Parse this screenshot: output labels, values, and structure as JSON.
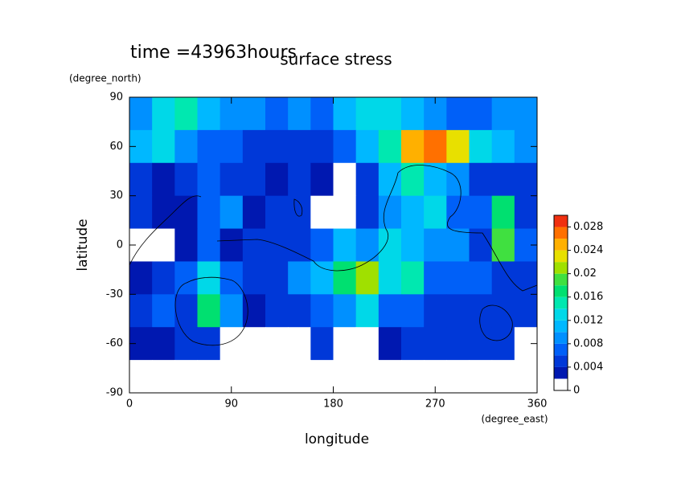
{
  "chart_data": {
    "type": "contour",
    "title": "surface stress",
    "subtitle": "time =43963hours",
    "x_label": "longitude",
    "x_units": "(degree_east)",
    "y_label": "latitude",
    "y_units": "(degree_north)",
    "xlim": [
      0,
      360
    ],
    "xticks": [
      0,
      90,
      180,
      270,
      360
    ],
    "ylim": [
      -90,
      90
    ],
    "yticks": [
      -90,
      -60,
      -30,
      0,
      30,
      60,
      90
    ],
    "x": [
      10,
      30,
      50,
      70,
      90,
      110,
      130,
      150,
      170,
      190,
      210,
      230,
      250,
      270,
      290,
      310,
      330,
      350
    ],
    "y": [
      80,
      60,
      40,
      20,
      0,
      -20,
      -40,
      -60,
      -80
    ],
    "z": [
      [
        0.008,
        0.012,
        0.014,
        0.01,
        0.008,
        0.008,
        0.006,
        0.008,
        0.006,
        0.01,
        0.012,
        0.012,
        0.01,
        0.008,
        0.006,
        0.006,
        0.008,
        0.008
      ],
      [
        0.01,
        0.012,
        0.008,
        0.006,
        0.006,
        0.004,
        0.004,
        0.004,
        0.004,
        0.006,
        0.01,
        0.014,
        0.024,
        0.026,
        0.022,
        0.012,
        0.01,
        0.008
      ],
      [
        0.004,
        0.002,
        0.004,
        0.006,
        0.004,
        0.004,
        0.002,
        0.004,
        0.002,
        0,
        0.004,
        0.01,
        0.014,
        0.01,
        0.008,
        0.004,
        0.004,
        0.004
      ],
      [
        0.004,
        0.002,
        0.002,
        0.006,
        0.008,
        0.002,
        0.004,
        0.004,
        0,
        0,
        0.004,
        0.008,
        0.01,
        0.012,
        0.006,
        0.006,
        0.016,
        0.004
      ],
      [
        0,
        0,
        0.002,
        0.006,
        0.002,
        0.004,
        0.004,
        0.004,
        0.006,
        0.01,
        0.008,
        0.012,
        0.01,
        0.008,
        0.008,
        0.004,
        0.018,
        0.006
      ],
      [
        0.002,
        0.004,
        0.006,
        0.012,
        0.006,
        0.004,
        0.004,
        0.008,
        0.01,
        0.016,
        0.02,
        0.012,
        0.014,
        0.006,
        0.006,
        0.006,
        0.004,
        0.004
      ],
      [
        0.004,
        0.006,
        0.004,
        0.016,
        0.008,
        0.002,
        0.004,
        0.004,
        0.006,
        0.008,
        0.012,
        0.006,
        0.006,
        0.004,
        0.004,
        0.004,
        0.004,
        0.004
      ],
      [
        0.002,
        0.002,
        0.004,
        0.004,
        0,
        0,
        0,
        0,
        0.004,
        0,
        0,
        0.002,
        0.004,
        0.004,
        0.004,
        0.004,
        0.004,
        0
      ],
      [
        0,
        0,
        0,
        0,
        0,
        0,
        0,
        0,
        0,
        0,
        0,
        0,
        0,
        0,
        0,
        0,
        0,
        0
      ]
    ],
    "zlim": [
      0,
      0.03
    ],
    "levels": [
      0,
      0.002,
      0.004,
      0.006,
      0.008,
      0.01,
      0.012,
      0.014,
      0.016,
      0.018,
      0.02,
      0.022,
      0.024,
      0.026,
      0.028
    ],
    "colors": [
      "#ffffff",
      "#0018b0",
      "#0038d8",
      "#0060f8",
      "#0090ff",
      "#00b8ff",
      "#00d8e8",
      "#00e8b0",
      "#00e070",
      "#40e040",
      "#a0e000",
      "#e8e000",
      "#ffb000",
      "#ff7000",
      "#f03010"
    ],
    "zticks": [
      0,
      0.004,
      0.008,
      0.012,
      0.016,
      0.02,
      0.024,
      0.028
    ]
  }
}
